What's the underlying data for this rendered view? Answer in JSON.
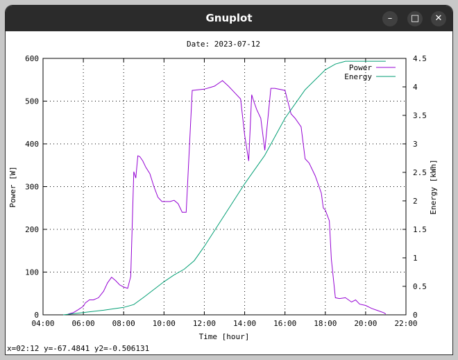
{
  "window": {
    "title": "Gnuplot",
    "minimize_icon": "minimize-icon",
    "maximize_icon": "maximize-icon",
    "close_icon": "close-icon"
  },
  "status_text": "x=02:12 y=-67.4841 y2=-0.506131",
  "colors": {
    "power": "#9400d3",
    "energy": "#009e73"
  },
  "chart_data": {
    "type": "line",
    "title": "Date: 2023-07-12",
    "xlabel": "Time [hour]",
    "ylabel": "Power [W]",
    "y2label": "Energy [kWh]",
    "xlim": [
      4,
      22
    ],
    "ylim": [
      0,
      600
    ],
    "y2lim": [
      0,
      4.5
    ],
    "grid": true,
    "legend_position": "top-right",
    "x_ticks": [
      "04:00",
      "06:00",
      "08:00",
      "10:00",
      "12:00",
      "14:00",
      "16:00",
      "18:00",
      "20:00",
      "22:00"
    ],
    "y_ticks": [
      "0",
      "100",
      "200",
      "300",
      "400",
      "500",
      "600"
    ],
    "y2_ticks": [
      "0",
      "0.5",
      "1",
      "1.5",
      "2",
      "2.5",
      "3",
      "3.5",
      "4",
      "4.5"
    ],
    "series": [
      {
        "name": "Power",
        "axis": "y",
        "x": [
          5.25,
          5.5,
          5.75,
          6.0,
          6.1,
          6.3,
          6.5,
          6.75,
          7.0,
          7.2,
          7.4,
          7.6,
          7.8,
          8.0,
          8.2,
          8.35,
          8.5,
          8.6,
          8.7,
          8.8,
          8.95,
          9.1,
          9.3,
          9.5,
          9.7,
          9.9,
          10.1,
          10.3,
          10.5,
          10.7,
          10.9,
          11.1,
          11.4,
          12.0,
          12.5,
          12.9,
          13.2,
          13.5,
          13.8,
          14.0,
          14.2,
          14.35,
          14.45,
          14.6,
          14.8,
          15.0,
          15.3,
          15.5,
          16.0,
          16.3,
          16.5,
          16.8,
          17.0,
          17.2,
          17.5,
          17.8,
          17.9,
          18.0,
          18.2,
          18.3,
          18.5,
          18.7,
          19.0,
          19.3,
          19.5,
          19.7,
          20.0,
          20.3,
          20.6,
          20.9,
          21.0
        ],
        "y": [
          2,
          5,
          12,
          20,
          28,
          35,
          35,
          40,
          55,
          75,
          88,
          80,
          70,
          65,
          62,
          90,
          335,
          320,
          372,
          370,
          360,
          345,
          330,
          300,
          275,
          265,
          265,
          265,
          268,
          260,
          240,
          240,
          525,
          528,
          535,
          548,
          535,
          520,
          505,
          420,
          360,
          515,
          500,
          480,
          460,
          385,
          530,
          530,
          525,
          470,
          460,
          440,
          365,
          355,
          325,
          285,
          250,
          245,
          220,
          130,
          40,
          38,
          40,
          30,
          35,
          25,
          22,
          15,
          10,
          5,
          2
        ]
      },
      {
        "name": "Energy",
        "axis": "y2",
        "x": [
          5.0,
          6.0,
          7.0,
          8.0,
          8.5,
          9.0,
          10.0,
          10.5,
          11.0,
          11.5,
          12.0,
          13.0,
          14.0,
          14.6,
          15.0,
          16.0,
          17.0,
          18.0,
          18.5,
          19.0,
          19.5,
          20.0,
          21.0
        ],
        "y": [
          0.0,
          0.04,
          0.08,
          0.13,
          0.18,
          0.31,
          0.58,
          0.7,
          0.8,
          0.95,
          1.2,
          1.75,
          2.3,
          2.6,
          2.8,
          3.45,
          3.95,
          4.3,
          4.4,
          4.45,
          4.45,
          4.45,
          4.45
        ]
      }
    ]
  }
}
